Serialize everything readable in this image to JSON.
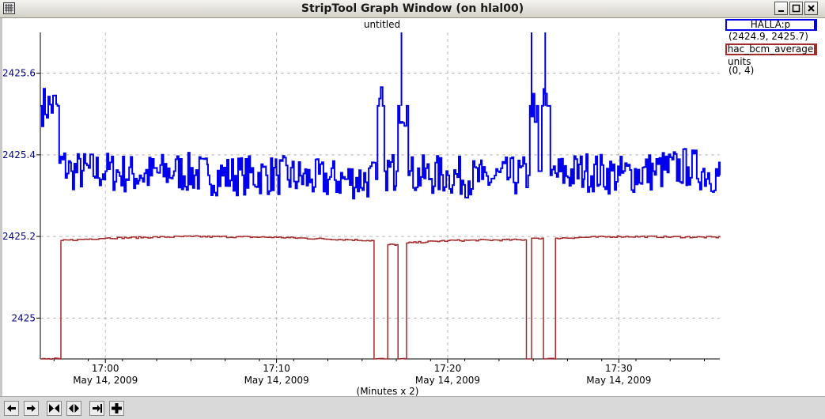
{
  "window": {
    "title": "StripTool Graph Window (on hlal00)",
    "controls": [
      "minimize",
      "maximize",
      "close"
    ]
  },
  "graph": {
    "title": "untitled",
    "x_axis_label": "(Minutes x 2)"
  },
  "legend": [
    {
      "name": "HALLA:p",
      "range": "(2424.9, 2425.7)",
      "units": "",
      "color": "#0000ee"
    },
    {
      "name": "hac_bcm_average",
      "range": "(0, 4)",
      "units": "units",
      "color": "#a52a2a"
    }
  ],
  "toolbar": {
    "icons": [
      "arrow-left-icon",
      "arrow-right-icon",
      "zoom-in-horizontal-icon",
      "zoom-out-horizontal-icon",
      "zoom-out-vertical-icon",
      "zoom-in-plus-icon"
    ]
  },
  "chart_data": {
    "type": "line",
    "title": "untitled",
    "xlabel": "(Minutes x 2)",
    "ylabel": "",
    "x_ticks": [
      {
        "time": "17:00",
        "date": "May 14, 2009"
      },
      {
        "time": "17:10",
        "date": "May 14, 2009"
      },
      {
        "time": "17:20",
        "date": "May 14, 2009"
      },
      {
        "time": "17:30",
        "date": "May 14, 2009"
      }
    ],
    "x_range_minutes": [
      "16:56.2",
      "17:35.9"
    ],
    "y_ticks": [
      "2425",
      "2425.2",
      "2425.4",
      "2425.6"
    ],
    "ylim": [
      2424.9,
      2425.7
    ],
    "grid": true,
    "series": [
      {
        "name": "HALLA:p",
        "color": "#0000ee",
        "y_range": [
          2424.9,
          2425.7
        ],
        "points": [
          [
            "16:56.2",
            2425.52
          ],
          [
            "16:57.2",
            2425.52
          ],
          [
            "16:57.3",
            2425.38
          ],
          [
            "16:58",
            2425.36
          ],
          [
            "17:00",
            2425.36
          ],
          [
            "17:02",
            2425.35
          ],
          [
            "17:04",
            2425.36
          ],
          [
            "17:06",
            2425.35
          ],
          [
            "17:08",
            2425.35
          ],
          [
            "17:10",
            2425.35
          ],
          [
            "17:12",
            2425.34
          ],
          [
            "17:14",
            2425.34
          ],
          [
            "17:15.8",
            2425.34
          ],
          [
            "17:15.9",
            2425.52
          ],
          [
            "17:16.2",
            2425.52
          ],
          [
            "17:16.3",
            2425.36
          ],
          [
            "17:17.0",
            2425.36
          ],
          [
            "17:17.1",
            2425.52
          ],
          [
            "17:17.6",
            2425.52
          ],
          [
            "17:17.7",
            2425.35
          ],
          [
            "17:20",
            2425.35
          ],
          [
            "17:22",
            2425.34
          ],
          [
            "17:24.7",
            2425.35
          ],
          [
            "17:24.8",
            2425.52
          ],
          [
            "17:25.2",
            2425.52
          ],
          [
            "17:25.3",
            2425.36
          ],
          [
            "17:25.5",
            2425.52
          ],
          [
            "17:25.8",
            2425.52
          ],
          [
            "17:26.0",
            2425.35
          ],
          [
            "17:28",
            2425.36
          ],
          [
            "17:30",
            2425.35
          ],
          [
            "17:32",
            2425.36
          ],
          [
            "17:34",
            2425.37
          ],
          [
            "17:35.9",
            2425.35
          ]
        ]
      },
      {
        "name": "hac_bcm_average",
        "color": "#a52a2a",
        "y_range": [
          0,
          4
        ],
        "points": [
          [
            "16:56.2",
            0.0
          ],
          [
            "16:57.3",
            0.0
          ],
          [
            "16:57.4",
            1.45
          ],
          [
            "17:00",
            1.48
          ],
          [
            "17:05",
            1.5
          ],
          [
            "17:10",
            1.49
          ],
          [
            "17:15.6",
            1.45
          ],
          [
            "17:15.7",
            0.0
          ],
          [
            "17:16.4",
            0.0
          ],
          [
            "17:16.5",
            1.4
          ],
          [
            "17:17.0",
            1.4
          ],
          [
            "17:17.1",
            0.0
          ],
          [
            "17:17.5",
            0.0
          ],
          [
            "17:17.6",
            1.42
          ],
          [
            "17:20",
            1.45
          ],
          [
            "17:24.5",
            1.46
          ],
          [
            "17:24.6",
            0.0
          ],
          [
            "17:24.8",
            0.0
          ],
          [
            "17:24.9",
            1.48
          ],
          [
            "17:25.5",
            1.48
          ],
          [
            "17:25.6",
            0.0
          ],
          [
            "17:26.2",
            0.0
          ],
          [
            "17:26.3",
            1.48
          ],
          [
            "17:30",
            1.5
          ],
          [
            "17:35.9",
            1.49
          ]
        ]
      }
    ]
  }
}
